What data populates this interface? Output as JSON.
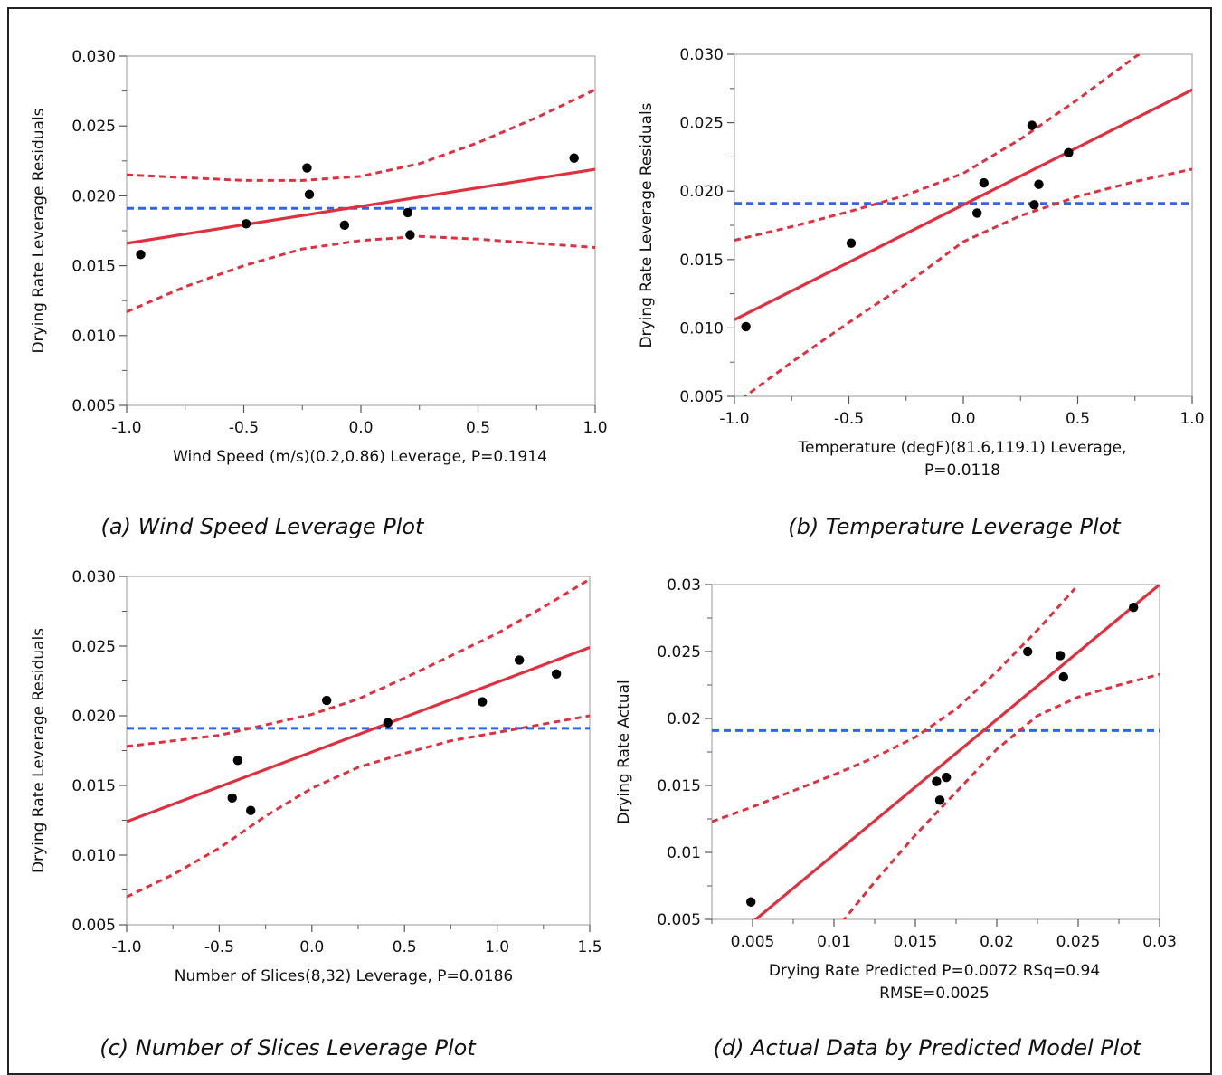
{
  "chart_data": [
    {
      "type": "scatter",
      "caption": "(a) Wind Speed Leverage Plot",
      "ylabel": "Drying Rate Leverage Residuals",
      "xlabel_lines": [
        "Wind Speed (m/s)(0.2,0.86) Leverage, P=0.1914"
      ],
      "xlim": [
        -1.0,
        1.0
      ],
      "ylim": [
        0.005,
        0.03
      ],
      "xticks": [
        -1.0,
        -0.5,
        0.0,
        0.5,
        1.0
      ],
      "xtick_labels": [
        "-1.0",
        "-0.5",
        "0.0",
        "0.5",
        "1.0"
      ],
      "yticks": [
        0.005,
        0.01,
        0.015,
        0.02,
        0.025,
        0.03
      ],
      "ytick_labels": [
        "0.005",
        "0.010",
        "0.015",
        "0.020",
        "0.025",
        "0.030"
      ],
      "points": [
        [
          -0.94,
          0.0158
        ],
        [
          -0.49,
          0.018
        ],
        [
          -0.23,
          0.022
        ],
        [
          -0.22,
          0.0201
        ],
        [
          -0.07,
          0.0179
        ],
        [
          0.2,
          0.0188
        ],
        [
          0.21,
          0.0172
        ],
        [
          0.91,
          0.0227
        ]
      ],
      "mean_line": 0.0191,
      "fit_line": [
        [
          -1.0,
          0.0166
        ],
        [
          1.0,
          0.0219
        ]
      ],
      "upper_band": [
        [
          -1.0,
          0.0215
        ],
        [
          -0.75,
          0.0213
        ],
        [
          -0.5,
          0.0211
        ],
        [
          -0.25,
          0.0211
        ],
        [
          0.0,
          0.0214
        ],
        [
          0.25,
          0.0223
        ],
        [
          0.5,
          0.0238
        ],
        [
          0.75,
          0.0256
        ],
        [
          1.0,
          0.0276
        ]
      ],
      "lower_band": [
        [
          -1.0,
          0.0117
        ],
        [
          -0.75,
          0.0135
        ],
        [
          -0.5,
          0.015
        ],
        [
          -0.25,
          0.0162
        ],
        [
          0.0,
          0.0168
        ],
        [
          0.25,
          0.0171
        ],
        [
          0.5,
          0.0169
        ],
        [
          0.75,
          0.0166
        ],
        [
          1.0,
          0.0163
        ]
      ]
    },
    {
      "type": "scatter",
      "caption": "(b) Temperature Leverage Plot",
      "ylabel": "Drying Rate Leverage Residuals",
      "xlabel_lines": [
        "Temperature (degF)(81.6,119.1) Leverage,",
        "P=0.0118"
      ],
      "xlim": [
        -1.0,
        1.0
      ],
      "ylim": [
        0.005,
        0.03
      ],
      "xticks": [
        -1.0,
        -0.5,
        0.0,
        0.5,
        1.0
      ],
      "xtick_labels": [
        "-1.0",
        "-0.5",
        "0.0",
        "0.5",
        "1.0"
      ],
      "yticks": [
        0.005,
        0.01,
        0.015,
        0.02,
        0.025,
        0.03
      ],
      "ytick_labels": [
        "0.005",
        "0.010",
        "0.015",
        "0.020",
        "0.025",
        "0.030"
      ],
      "points": [
        [
          -0.95,
          0.0101
        ],
        [
          -0.49,
          0.0162
        ],
        [
          0.06,
          0.0184
        ],
        [
          0.09,
          0.0206
        ],
        [
          0.3,
          0.0248
        ],
        [
          0.31,
          0.019
        ],
        [
          0.33,
          0.0205
        ],
        [
          0.46,
          0.0228
        ]
      ],
      "mean_line": 0.0191,
      "fit_line": [
        [
          -1.0,
          0.0106
        ],
        [
          1.0,
          0.0274
        ]
      ],
      "upper_band": [
        [
          -1.0,
          0.0164
        ],
        [
          -0.75,
          0.0174
        ],
        [
          -0.5,
          0.0185
        ],
        [
          -0.25,
          0.0197
        ],
        [
          0.0,
          0.0213
        ],
        [
          0.25,
          0.0238
        ],
        [
          0.5,
          0.0267
        ],
        [
          0.75,
          0.0298
        ],
        [
          0.85,
          0.0308
        ]
      ],
      "lower_band": [
        [
          -0.97,
          0.0048
        ],
        [
          -0.75,
          0.0075
        ],
        [
          -0.5,
          0.0104
        ],
        [
          -0.25,
          0.0132
        ],
        [
          0.0,
          0.0163
        ],
        [
          0.25,
          0.0182
        ],
        [
          0.5,
          0.0196
        ],
        [
          0.75,
          0.0207
        ],
        [
          1.0,
          0.0216
        ]
      ]
    },
    {
      "type": "scatter",
      "caption": "(c) Number of Slices Leverage Plot",
      "ylabel": "Drying Rate Leverage Residuals",
      "xlabel_lines": [
        "Number of Slices(8,32) Leverage, P=0.0186"
      ],
      "xlim": [
        -1.0,
        1.5
      ],
      "ylim": [
        0.005,
        0.03
      ],
      "xticks": [
        -1.0,
        -0.5,
        0.0,
        0.5,
        1.0,
        1.5
      ],
      "xtick_labels": [
        "-1.0",
        "-0.5",
        "0.0",
        "0.5",
        "1.0",
        "1.5"
      ],
      "yticks": [
        0.005,
        0.01,
        0.015,
        0.02,
        0.025,
        0.03
      ],
      "ytick_labels": [
        "0.005",
        "0.010",
        "0.015",
        "0.020",
        "0.025",
        "0.030"
      ],
      "points": [
        [
          -0.43,
          0.0141
        ],
        [
          -0.4,
          0.0168
        ],
        [
          -0.33,
          0.0132
        ],
        [
          0.08,
          0.0211
        ],
        [
          0.41,
          0.0195
        ],
        [
          0.92,
          0.021
        ],
        [
          1.12,
          0.024
        ],
        [
          1.32,
          0.023
        ]
      ],
      "mean_line": 0.0191,
      "fit_line": [
        [
          -1.0,
          0.0124
        ],
        [
          1.5,
          0.0249
        ]
      ],
      "upper_band": [
        [
          -1.0,
          0.0178
        ],
        [
          -0.5,
          0.0186
        ],
        [
          0.0,
          0.0201
        ],
        [
          0.25,
          0.0212
        ],
        [
          0.5,
          0.0227
        ],
        [
          0.75,
          0.0243
        ],
        [
          1.0,
          0.0259
        ],
        [
          1.25,
          0.0278
        ],
        [
          1.5,
          0.0298
        ]
      ],
      "lower_band": [
        [
          -1.0,
          0.007
        ],
        [
          -0.75,
          0.0086
        ],
        [
          -0.5,
          0.0105
        ],
        [
          -0.25,
          0.0128
        ],
        [
          0.0,
          0.0148
        ],
        [
          0.25,
          0.0163
        ],
        [
          0.5,
          0.0173
        ],
        [
          0.75,
          0.0182
        ],
        [
          1.0,
          0.0188
        ],
        [
          1.25,
          0.0194
        ],
        [
          1.5,
          0.02
        ]
      ]
    },
    {
      "type": "scatter",
      "caption": "(d) Actual Data by Predicted Model Plot",
      "ylabel": "Drying Rate Actual",
      "xlabel_lines": [
        "Drying Rate Predicted P=0.0072 RSq=0.94",
        "RMSE=0.0025"
      ],
      "xlim": [
        0.0025,
        0.03
      ],
      "ylim": [
        0.005,
        0.03
      ],
      "xticks": [
        0.005,
        0.01,
        0.015,
        0.02,
        0.025,
        0.03
      ],
      "xtick_labels": [
        "0.005",
        "0.01",
        "0.015",
        "0.02",
        "0.025",
        "0.03"
      ],
      "yticks": [
        0.005,
        0.01,
        0.015,
        0.02,
        0.025,
        0.03
      ],
      "ytick_labels": [
        "0.005",
        "0.01",
        "0.015",
        "0.02",
        "0.025",
        "0.03"
      ],
      "points": [
        [
          0.0049,
          0.0063
        ],
        [
          0.0163,
          0.0153
        ],
        [
          0.0165,
          0.0139
        ],
        [
          0.0169,
          0.0156
        ],
        [
          0.0219,
          0.025
        ],
        [
          0.0239,
          0.0247
        ],
        [
          0.0241,
          0.0231
        ],
        [
          0.0284,
          0.0283
        ]
      ],
      "mean_line": 0.0191,
      "fit_line": [
        [
          0.0047,
          0.0045
        ],
        [
          0.03,
          0.03
        ]
      ],
      "upper_band": [
        [
          0.0025,
          0.0123
        ],
        [
          0.005,
          0.0134
        ],
        [
          0.0075,
          0.0146
        ],
        [
          0.01,
          0.0158
        ],
        [
          0.0125,
          0.0171
        ],
        [
          0.015,
          0.0186
        ],
        [
          0.0175,
          0.0207
        ],
        [
          0.02,
          0.0235
        ],
        [
          0.0225,
          0.0266
        ],
        [
          0.0248,
          0.0297
        ]
      ],
      "lower_band": [
        [
          0.0105,
          0.0048
        ],
        [
          0.0125,
          0.0078
        ],
        [
          0.015,
          0.0113
        ],
        [
          0.0175,
          0.0145
        ],
        [
          0.02,
          0.0177
        ],
        [
          0.0225,
          0.0202
        ],
        [
          0.025,
          0.0216
        ],
        [
          0.0275,
          0.0225
        ],
        [
          0.03,
          0.0233
        ]
      ]
    }
  ]
}
